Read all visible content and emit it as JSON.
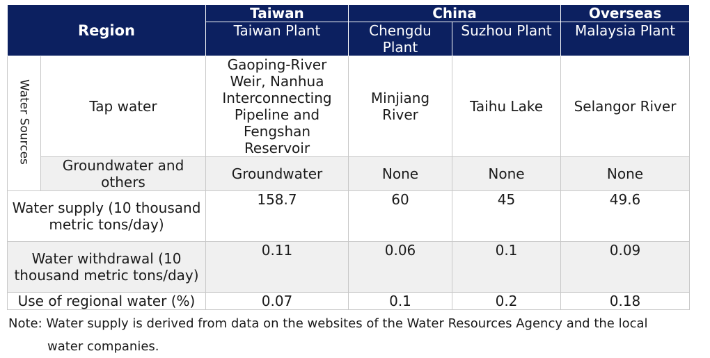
{
  "header": {
    "region": "Region",
    "groups": [
      {
        "label": "Taiwan",
        "plants": [
          "Taiwan Plant"
        ]
      },
      {
        "label": "China",
        "plants": [
          "Chengdu Plant",
          "Suzhou Plant"
        ]
      },
      {
        "label": "Overseas",
        "plants": [
          "Malaysia Plant"
        ]
      }
    ]
  },
  "water_sources_label": "Water Sources",
  "rows": {
    "tap_water": {
      "label": "Tap water",
      "values": [
        "Gaoping-River Weir, Nanhua Interconnecting Pipeline and Fengshan Reservoir",
        "Minjiang River",
        "Taihu Lake",
        "Selangor River"
      ]
    },
    "groundwater": {
      "label": "Groundwater and others",
      "values": [
        "Groundwater",
        "None",
        "None",
        "None"
      ]
    },
    "supply": {
      "label": "Water supply (10 thousand metric tons/day)",
      "values": [
        "158.7",
        "60",
        "45",
        "49.6"
      ]
    },
    "withdrawal": {
      "label": "Water withdrawal (10 thousand metric tons/day)",
      "values": [
        "0.11",
        "0.06",
        "0.1",
        "0.09"
      ]
    },
    "regional_use": {
      "label": "Use of regional water (%)",
      "values": [
        "0.07",
        "0.1",
        "0.2",
        "0.18"
      ]
    }
  },
  "note": {
    "line1": "Note: Water supply is derived from data on the websites of the Water Resources Agency and the local",
    "line2": "water companies."
  }
}
